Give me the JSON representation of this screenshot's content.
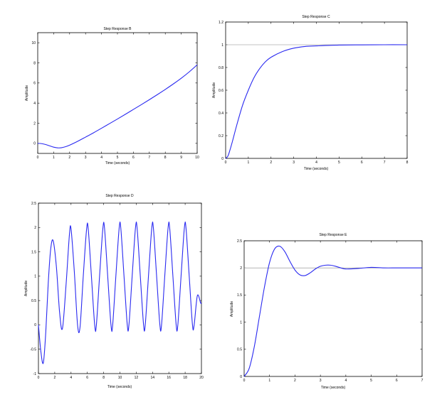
{
  "chart_data": [
    {
      "type": "line",
      "title": "Step Response B",
      "xlabel": "Time (seconds)",
      "ylabel": "Amplitude",
      "xlim": [
        0,
        10
      ],
      "ylim": [
        -1,
        11
      ],
      "xticks": [
        0,
        1,
        2,
        3,
        4,
        5,
        6,
        7,
        8,
        9,
        10
      ],
      "yticks": [
        0,
        2,
        4,
        6,
        8,
        10
      ],
      "xtick_labels": [
        "0",
        "1",
        "2",
        "3",
        "4",
        "5",
        "6",
        "7",
        "8",
        "9",
        "10"
      ],
      "ytick_labels": [
        "0",
        "2",
        "4",
        "6",
        "8",
        "10"
      ],
      "grid": false,
      "series": [
        {
          "color": "#2a2af0",
          "x": [
            0,
            0.25,
            0.5,
            0.75,
            1.0,
            1.25,
            1.5,
            1.75,
            2.0,
            2.5,
            3.0,
            3.5,
            4.0,
            4.5,
            5.0,
            5.5,
            6.0,
            6.5,
            7.0,
            7.5,
            8.0,
            8.5,
            9.0,
            9.5,
            10.0
          ],
          "y": [
            0,
            -0.03,
            -0.12,
            -0.25,
            -0.38,
            -0.45,
            -0.43,
            -0.33,
            -0.18,
            0.2,
            0.62,
            1.05,
            1.5,
            1.96,
            2.42,
            2.89,
            3.37,
            3.85,
            4.34,
            4.84,
            5.36,
            5.9,
            6.47,
            7.1,
            7.8
          ]
        }
      ]
    },
    {
      "type": "line",
      "title": "Step Response C",
      "xlabel": "Time (seconds)",
      "ylabel": "Amplitude",
      "xlim": [
        0,
        8
      ],
      "ylim": [
        0,
        1.2
      ],
      "xticks": [
        0,
        1,
        2,
        3,
        4,
        5,
        6,
        7,
        8
      ],
      "yticks": [
        0,
        0.2,
        0.4,
        0.6,
        0.8,
        1,
        1.2
      ],
      "xtick_labels": [
        "0",
        "1",
        "2",
        "3",
        "4",
        "5",
        "6",
        "7",
        "8"
      ],
      "ytick_labels": [
        "0",
        "0.2",
        "0.4",
        "0.6",
        "0.8",
        "1",
        "1.2"
      ],
      "grid": false,
      "reference_line": 1,
      "series": [
        {
          "color": "#2a2af0",
          "x": [
            0,
            0.1,
            0.2,
            0.3,
            0.5,
            0.75,
            1.0,
            1.25,
            1.5,
            1.75,
            2.0,
            2.5,
            3.0,
            3.5,
            4.0,
            5.0,
            6.0,
            7.0,
            8.0
          ],
          "y": [
            0,
            0.02,
            0.08,
            0.15,
            0.3,
            0.47,
            0.6,
            0.71,
            0.79,
            0.85,
            0.89,
            0.94,
            0.97,
            0.985,
            0.99,
            0.997,
            0.999,
            1.0,
            1.0
          ]
        }
      ]
    },
    {
      "type": "line",
      "title": "Step Response D",
      "xlabel": "Time (seconds)",
      "ylabel": "Amplitude",
      "xlim": [
        0,
        20
      ],
      "ylim": [
        -1,
        2.5
      ],
      "xticks": [
        0,
        2,
        4,
        6,
        8,
        10,
        12,
        14,
        16,
        18,
        20
      ],
      "yticks": [
        -1,
        -0.5,
        0,
        0.5,
        1,
        1.5,
        2,
        2.5
      ],
      "xtick_labels": [
        "0",
        "2",
        "4",
        "6",
        "8",
        "10",
        "12",
        "14",
        "16",
        "18",
        "20"
      ],
      "ytick_labels": [
        "-1",
        "-0.5",
        "0",
        "0.5",
        "1",
        "1.5",
        "2",
        "2.5"
      ],
      "grid": false,
      "series": [
        {
          "color": "#2a2af0",
          "x": [
            0,
            0.3,
            0.6,
            0.9,
            1.2,
            1.5,
            1.8,
            2.2,
            2.6,
            2.95,
            3.4,
            3.8,
            4.0,
            4.4,
            4.8,
            5.1,
            5.5,
            5.9,
            6.1,
            6.5,
            6.9,
            7.1,
            7.5,
            7.9,
            8.1,
            8.5,
            8.9,
            9.1,
            9.5,
            9.9,
            10.1,
            10.5,
            10.9,
            11.1,
            11.5,
            11.9,
            12.1,
            12.5,
            12.9,
            13.1,
            13.5,
            13.9,
            14.1,
            14.5,
            14.9,
            15.1,
            15.5,
            15.9,
            16.1,
            16.5,
            16.9,
            17.1,
            17.5,
            17.9,
            18.1,
            18.5,
            18.9,
            19.1,
            19.5,
            19.9,
            20.0
          ],
          "y": [
            0,
            -0.55,
            -0.78,
            -0.15,
            0.85,
            1.55,
            1.73,
            1.2,
            0.25,
            -0.07,
            0.85,
            1.85,
            1.97,
            1.1,
            0.0,
            -0.05,
            1.0,
            1.95,
            1.99,
            1.0,
            0.0,
            -0.02,
            1.0,
            1.97,
            2.0,
            1.0,
            0.0,
            -0.02,
            1.0,
            1.98,
            2.0,
            1.0,
            0.0,
            -0.01,
            1.0,
            1.98,
            2.0,
            1.0,
            0.0,
            -0.01,
            1.0,
            1.98,
            2.0,
            1.0,
            0.0,
            -0.01,
            1.0,
            1.98,
            2.0,
            1.0,
            0.0,
            -0.01,
            1.0,
            1.98,
            2.0,
            1.0,
            0.0,
            -0.01,
            0.6,
            0.45,
            0.45
          ]
        }
      ]
    },
    {
      "type": "line",
      "title": "Step Response E",
      "xlabel": "Time (seconds)",
      "ylabel": "Amplitude",
      "xlim": [
        0,
        7
      ],
      "ylim": [
        0,
        2.5
      ],
      "xticks": [
        0,
        1,
        2,
        3,
        4,
        5,
        6,
        7
      ],
      "yticks": [
        0,
        0.5,
        1,
        1.5,
        2,
        2.5
      ],
      "xtick_labels": [
        "0",
        "1",
        "2",
        "3",
        "4",
        "5",
        "6",
        "7"
      ],
      "ytick_labels": [
        "0",
        "0.5",
        "1",
        "1.5",
        "2",
        "2.5"
      ],
      "grid": false,
      "reference_line": 2,
      "series": [
        {
          "color": "#2a2af0",
          "x": [
            0,
            0.2,
            0.4,
            0.6,
            0.8,
            1.0,
            1.2,
            1.4,
            1.6,
            1.8,
            2.0,
            2.2,
            2.4,
            2.6,
            2.8,
            3.0,
            3.2,
            3.4,
            3.6,
            3.8,
            4.0,
            4.5,
            5.0,
            5.5,
            6.0,
            6.5,
            7.0
          ],
          "y": [
            0,
            0.15,
            0.55,
            1.1,
            1.65,
            2.1,
            2.35,
            2.4,
            2.3,
            2.12,
            1.96,
            1.87,
            1.86,
            1.91,
            1.98,
            2.03,
            2.05,
            2.05,
            2.03,
            2.0,
            1.98,
            1.99,
            2.01,
            2.0,
            2.0,
            2.0,
            2.0
          ]
        }
      ]
    }
  ]
}
